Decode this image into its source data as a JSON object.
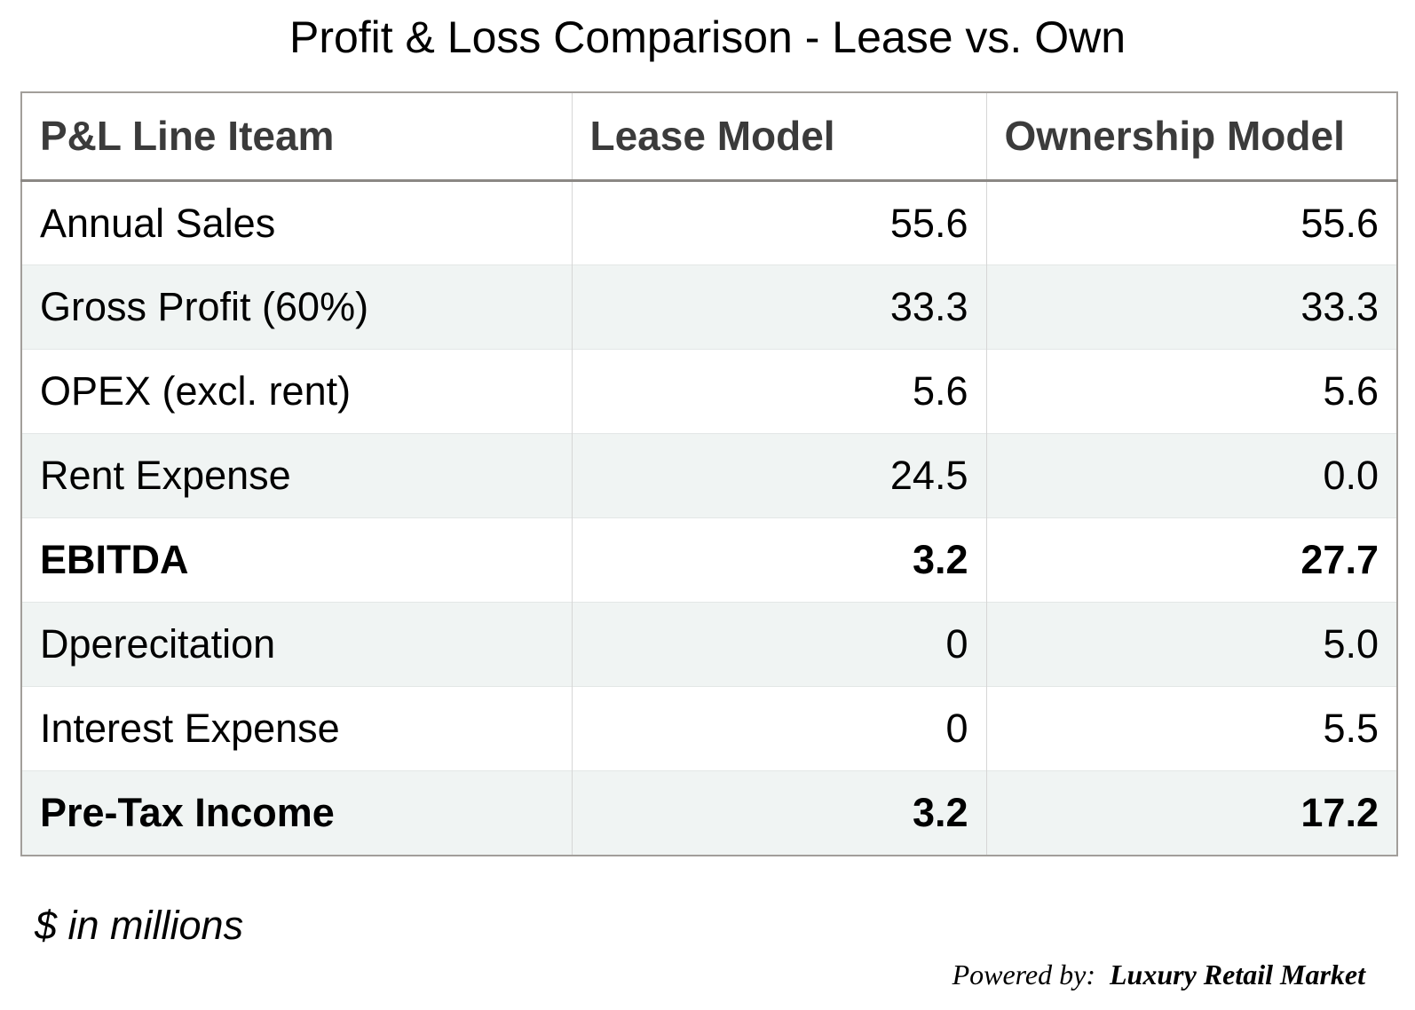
{
  "title": "Profit & Loss Comparison - Lease vs. Own",
  "table": {
    "columns": [
      "P&L Line Iteam",
      "Lease Model",
      "Ownership Model"
    ],
    "rows": [
      {
        "label": "Annual Sales",
        "lease": "55.6",
        "own": "55.6",
        "bold": false
      },
      {
        "label": "Gross Profit (60%)",
        "lease": "33.3",
        "own": "33.3",
        "bold": false
      },
      {
        "label": "OPEX (excl. rent)",
        "lease": "5.6",
        "own": "5.6",
        "bold": false
      },
      {
        "label": "Rent Expense",
        "lease": "24.5",
        "own": "0.0",
        "bold": false
      },
      {
        "label": "EBITDA",
        "lease": "3.2",
        "own": "27.7",
        "bold": true
      },
      {
        "label": "Dperecitation",
        "lease": "0",
        "own": "5.0",
        "bold": false
      },
      {
        "label": "Interest Expense",
        "lease": "0",
        "own": "5.5",
        "bold": false
      },
      {
        "label": "Pre-Tax Income",
        "lease": "3.2",
        "own": "17.2",
        "bold": true
      }
    ]
  },
  "footer": {
    "units_note": "$ in millions",
    "powered_by_prefix": "Powered by:",
    "powered_by_brand": "Luxury Retail Market"
  },
  "colors": {
    "background": "#ffffff",
    "stripe_row": "#f0f4f3",
    "outer_border": "#a29e9a",
    "header_bottom_border": "#8b8884",
    "column_divider": "#d6d6d6",
    "row_divider": "#e3e7e6",
    "header_text": "#3b3b3b",
    "body_text": "#000000"
  },
  "chart_data": {
    "type": "table",
    "title": "Profit & Loss Comparison - Lease vs. Own",
    "columns": [
      "P&L Line Iteam",
      "Lease Model",
      "Ownership Model"
    ],
    "rows": [
      [
        "Annual Sales",
        55.6,
        55.6
      ],
      [
        "Gross Profit (60%)",
        33.3,
        33.3
      ],
      [
        "OPEX (excl. rent)",
        5.6,
        5.6
      ],
      [
        "Rent Expense",
        24.5,
        0.0
      ],
      [
        "EBITDA",
        3.2,
        27.7
      ],
      [
        "Dperecitation",
        0,
        5.0
      ],
      [
        "Interest Expense",
        0,
        5.5
      ],
      [
        "Pre-Tax Income",
        3.2,
        17.2
      ]
    ],
    "emphasized_rows": [
      "EBITDA",
      "Pre-Tax Income"
    ],
    "units": "$ in millions",
    "notes": "Striped rows; EBITDA and Pre-Tax Income rendered bold; numeric columns right-aligned"
  }
}
